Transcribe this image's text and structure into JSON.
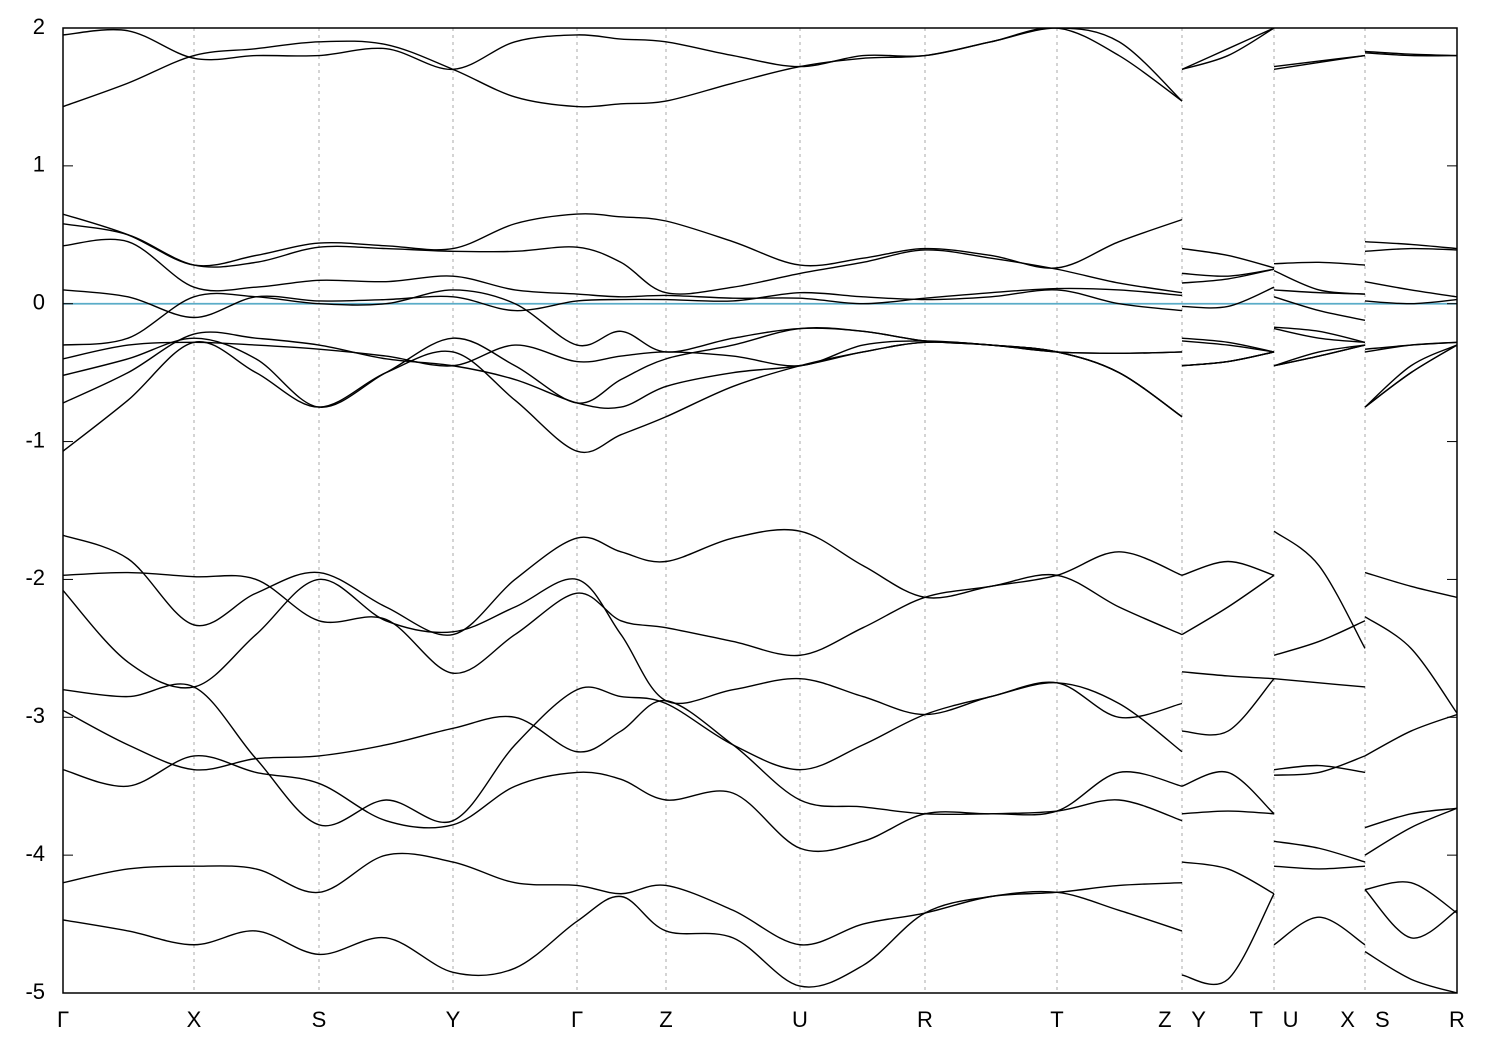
{
  "chart_data": {
    "type": "line",
    "x": [
      0,
      65,
      131,
      193,
      256,
      323,
      390,
      452,
      514,
      558,
      603,
      670,
      737,
      800,
      862,
      928,
      994,
      1056,
      1119,
      1119,
      1119,
      1165,
      1211,
      1211,
      1211,
      1256,
      1302,
      1302,
      1302,
      1348,
      1394
    ],
    "xlim": [
      0,
      1394
    ],
    "xticks": [
      {
        "value": 0,
        "label": "Γ"
      },
      {
        "value": 131,
        "label": "X"
      },
      {
        "value": 256,
        "label": "S"
      },
      {
        "value": 390,
        "label": "Y"
      },
      {
        "value": 514,
        "label": "Γ"
      },
      {
        "value": 603,
        "label": "Z"
      },
      {
        "value": 737,
        "label": "U"
      },
      {
        "value": 862,
        "label": "R"
      },
      {
        "value": 994,
        "label": "T"
      },
      {
        "value": 1119,
        "label": "Z Y"
      },
      {
        "value": 1211,
        "label": "T U"
      },
      {
        "value": 1302,
        "label": "X S"
      },
      {
        "value": 1394,
        "label": "R"
      }
    ],
    "ylim": [
      -5,
      2
    ],
    "yticks": [
      -5,
      -4,
      -3,
      -2,
      -1,
      0,
      1,
      2
    ],
    "grid": true,
    "color": "#000000",
    "fermi_level": 0,
    "fermi_color": "#5aacc8",
    "series": [
      {
        "values": [
          1.95,
          1.98,
          1.78,
          1.8,
          1.8,
          1.85,
          1.7,
          1.9,
          1.95,
          1.92,
          1.9,
          1.8,
          1.72,
          1.8,
          1.8,
          1.9,
          2.0,
          1.8,
          1.47,
          null,
          1.7,
          1.85,
          2.0,
          null,
          1.7,
          1.75,
          1.8,
          null,
          1.83,
          1.81,
          1.8
        ]
      },
      {
        "values": [
          1.43,
          1.6,
          1.8,
          1.85,
          1.9,
          1.88,
          1.7,
          1.5,
          1.43,
          1.45,
          1.47,
          1.6,
          1.72,
          1.78,
          1.8,
          1.9,
          2.0,
          1.9,
          1.47,
          null,
          1.7,
          1.8,
          2.0,
          null,
          1.72,
          1.76,
          1.8,
          null,
          1.82,
          1.8,
          1.8
        ]
      },
      {
        "values": [
          0.65,
          0.5,
          0.28,
          0.35,
          0.44,
          0.42,
          0.4,
          0.58,
          0.65,
          0.63,
          0.6,
          0.45,
          0.28,
          0.33,
          0.4,
          0.35,
          0.26,
          0.45,
          0.61,
          null,
          0.4,
          0.35,
          0.26,
          null,
          0.29,
          0.3,
          0.28,
          null,
          0.45,
          0.43,
          0.4
        ]
      },
      {
        "values": [
          0.58,
          0.5,
          0.28,
          0.3,
          0.41,
          0.4,
          0.38,
          0.38,
          0.41,
          0.3,
          0.08,
          0.12,
          0.22,
          0.3,
          0.39,
          0.33,
          0.25,
          0.15,
          0.08,
          null,
          0.22,
          0.2,
          0.25,
          null,
          0.24,
          0.1,
          0.07,
          null,
          0.38,
          0.4,
          0.39
        ]
      },
      {
        "values": [
          0.42,
          0.45,
          0.12,
          0.12,
          0.17,
          0.16,
          0.2,
          0.1,
          0.07,
          0.05,
          0.06,
          0.04,
          0.04,
          0.0,
          0.04,
          0.08,
          0.11,
          0.1,
          0.06,
          null,
          0.15,
          0.18,
          0.25,
          null,
          0.1,
          0.08,
          0.07,
          null,
          0.16,
          0.1,
          0.05
        ]
      },
      {
        "values": [
          0.1,
          0.05,
          -0.1,
          0.05,
          0.02,
          0.03,
          0.05,
          -0.05,
          0.02,
          0.03,
          0.03,
          0.02,
          0.08,
          0.05,
          0.03,
          0.05,
          0.1,
          0.0,
          -0.05,
          null,
          -0.02,
          -0.02,
          0.12,
          null,
          0.05,
          -0.05,
          -0.12,
          null,
          0.02,
          0.0,
          0.03
        ]
      },
      {
        "values": [
          -0.3,
          -0.25,
          0.05,
          0.05,
          0.0,
          0.0,
          0.1,
          0.0,
          -0.3,
          -0.2,
          -0.35,
          -0.25,
          -0.18,
          -0.2,
          -0.27,
          -0.3,
          -0.35,
          -0.36,
          -0.35,
          null,
          -0.25,
          -0.28,
          -0.35,
          null,
          -0.17,
          -0.2,
          -0.28,
          null,
          -0.33,
          -0.3,
          -0.28
        ]
      },
      {
        "values": [
          -0.4,
          -0.3,
          -0.28,
          -0.3,
          -0.33,
          -0.38,
          -0.45,
          -0.3,
          -0.42,
          -0.38,
          -0.35,
          -0.38,
          -0.45,
          -0.3,
          -0.27,
          -0.3,
          -0.35,
          -0.5,
          -0.82,
          null,
          -0.45,
          -0.42,
          -0.35,
          null,
          -0.45,
          -0.35,
          -0.3,
          null,
          -0.75,
          -0.45,
          -0.3
        ]
      },
      {
        "values": [
          -0.52,
          -0.4,
          -0.25,
          -0.4,
          -0.75,
          -0.5,
          -0.25,
          -0.45,
          -0.72,
          -0.55,
          -0.4,
          -0.3,
          -0.18,
          -0.2,
          -0.27,
          -0.3,
          -0.35,
          -0.36,
          -0.35,
          null,
          -0.27,
          -0.3,
          -0.35,
          null,
          -0.18,
          -0.25,
          -0.28,
          null,
          -0.35,
          -0.3,
          -0.28
        ]
      },
      {
        "values": [
          -0.72,
          -0.5,
          -0.22,
          -0.25,
          -0.3,
          -0.4,
          -0.45,
          -0.55,
          -0.72,
          -0.75,
          -0.6,
          -0.5,
          -0.45,
          -0.35,
          -0.28,
          -0.3,
          -0.35,
          -0.5,
          -0.82,
          null,
          -0.45,
          -0.42,
          -0.35,
          null,
          -0.45,
          -0.38,
          -0.3,
          null,
          -0.75,
          -0.5,
          -0.3
        ]
      },
      {
        "values": [
          -1.07,
          -0.7,
          -0.28,
          -0.5,
          -0.75,
          -0.5,
          -0.35,
          -0.7,
          -1.07,
          -0.95,
          -0.82,
          -0.6,
          -0.45,
          -0.35,
          -0.28,
          -0.3,
          -0.35,
          -0.5,
          -0.82,
          null,
          -0.45,
          -0.42,
          -0.35,
          null,
          -0.45,
          -0.38,
          -0.3,
          null,
          -0.75,
          -0.5,
          -0.3
        ]
      },
      {
        "values": [
          -1.68,
          -1.85,
          -2.33,
          -2.1,
          -1.95,
          -2.2,
          -2.4,
          -2.0,
          -1.7,
          -1.8,
          -1.87,
          -1.7,
          -1.65,
          -1.9,
          -2.13,
          -2.05,
          -1.97,
          -1.8,
          -1.97,
          null,
          -1.97,
          -1.87,
          -1.97,
          null,
          -1.65,
          -1.9,
          -2.5,
          null,
          -1.95,
          -2.05,
          -2.13
        ]
      },
      {
        "values": [
          -1.97,
          -1.95,
          -1.98,
          -2.0,
          -2.3,
          -2.29,
          -2.68,
          -2.4,
          -2.1,
          -2.3,
          -2.35,
          -2.45,
          -2.55,
          -2.35,
          -2.13,
          -2.05,
          -1.97,
          -2.2,
          -2.4,
          null,
          -2.4,
          -2.2,
          -1.97,
          null,
          -2.55,
          -2.45,
          -2.3,
          null,
          -2.27,
          -2.5,
          -2.97
        ]
      },
      {
        "values": [
          -2.08,
          -2.6,
          -2.78,
          -2.4,
          -2.0,
          -2.3,
          -2.38,
          -2.2,
          -2.0,
          -2.4,
          -2.88,
          -2.8,
          -2.72,
          -2.85,
          -2.98,
          -2.85,
          -2.75,
          -3.0,
          -2.9,
          null,
          -2.67,
          -2.7,
          -2.72,
          null,
          -2.72,
          -2.75,
          -2.78,
          null,
          -3.28,
          -3.1,
          -2.98
        ]
      },
      {
        "values": [
          -2.8,
          -2.85,
          -2.78,
          -3.3,
          -3.78,
          -3.6,
          -3.75,
          -3.2,
          -2.8,
          -2.85,
          -2.9,
          -3.2,
          -3.38,
          -3.2,
          -2.98,
          -2.85,
          -2.75,
          -2.9,
          -3.25,
          null,
          -3.1,
          -3.1,
          -2.72,
          null,
          -3.38,
          -3.35,
          -3.4,
          null,
          -3.8,
          -3.7,
          -3.66
        ]
      },
      {
        "values": [
          -2.95,
          -3.2,
          -3.38,
          -3.3,
          -3.28,
          -3.2,
          -3.08,
          -3.0,
          -3.25,
          -3.1,
          -2.88,
          -3.2,
          -3.6,
          -3.65,
          -3.7,
          -3.7,
          -3.68,
          -3.4,
          -3.5,
          null,
          -3.5,
          -3.4,
          -3.7,
          null,
          -3.42,
          -3.4,
          -3.28,
          null,
          -4.0,
          -3.8,
          -3.66
        ]
      },
      {
        "values": [
          -3.38,
          -3.5,
          -3.28,
          -3.4,
          -3.48,
          -3.75,
          -3.78,
          -3.5,
          -3.4,
          -3.45,
          -3.6,
          -3.55,
          -3.95,
          -3.9,
          -3.7,
          -3.7,
          -3.68,
          -3.6,
          -3.75,
          null,
          -3.7,
          -3.68,
          -3.7,
          null,
          -3.9,
          -3.95,
          -4.05,
          null,
          -4.25,
          -4.2,
          -4.42
        ]
      },
      {
        "values": [
          -4.2,
          -4.1,
          -4.08,
          -4.1,
          -4.27,
          -4.0,
          -4.05,
          -4.2,
          -4.22,
          -4.28,
          -4.22,
          -4.4,
          -4.65,
          -4.5,
          -4.42,
          -4.3,
          -4.27,
          -4.22,
          -4.2,
          null,
          -4.05,
          -4.1,
          -4.28,
          null,
          -4.08,
          -4.1,
          -4.08,
          null,
          -4.7,
          -4.9,
          -5
        ]
      },
      {
        "values": [
          -4.47,
          -4.55,
          -4.65,
          -4.55,
          -4.72,
          -4.6,
          -4.85,
          -4.82,
          -4.48,
          -4.3,
          -4.55,
          -4.6,
          -4.95,
          -4.8,
          -4.42,
          -4.3,
          -4.27,
          -4.4,
          -4.55,
          null,
          -4.87,
          -4.9,
          -4.28,
          null,
          -4.65,
          -4.45,
          -4.65,
          null,
          -4.25,
          -4.6,
          -4.4
        ]
      }
    ]
  }
}
